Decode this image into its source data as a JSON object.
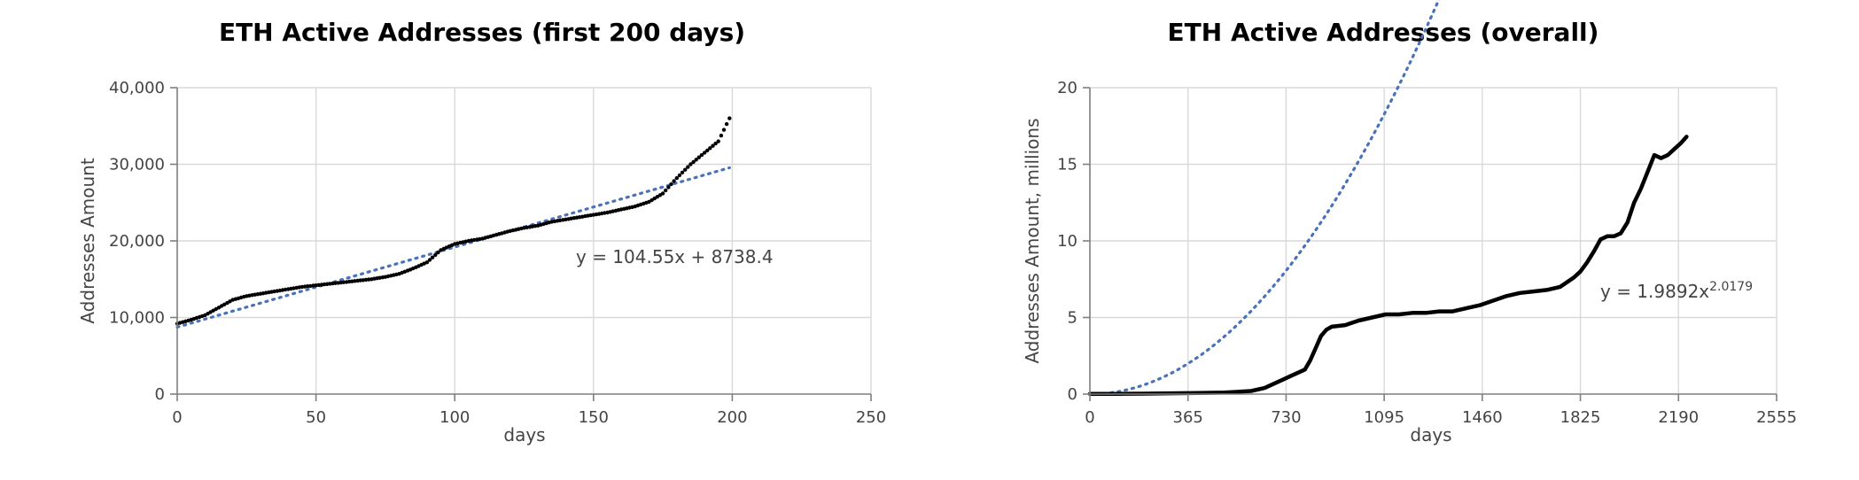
{
  "chart_data": [
    {
      "type": "scatter",
      "title": "ETH Active Addresses (first 200 days)",
      "xlabel": "days",
      "ylabel": "Addresses Amount",
      "xlim": [
        0,
        250
      ],
      "ylim": [
        0,
        40000
      ],
      "xticks": [
        0,
        50,
        100,
        150,
        200,
        250
      ],
      "yticks": [
        0,
        10000,
        20000,
        30000,
        40000
      ],
      "ytick_labels": [
        "0",
        "10,000",
        "20,000",
        "30,000",
        "40,000"
      ],
      "grid": true,
      "series": [
        {
          "color": "#000000",
          "x": [
            0,
            5,
            10,
            15,
            20,
            25,
            30,
            35,
            40,
            45,
            50,
            55,
            60,
            65,
            70,
            75,
            80,
            85,
            90,
            95,
            100,
            105,
            110,
            115,
            120,
            125,
            130,
            135,
            140,
            145,
            150,
            155,
            160,
            165,
            170,
            175,
            180,
            185,
            190,
            195,
            199
          ],
          "y": [
            9200,
            9700,
            10300,
            11300,
            12300,
            12800,
            13100,
            13400,
            13700,
            14000,
            14200,
            14400,
            14600,
            14800,
            15000,
            15300,
            15700,
            16400,
            17200,
            18800,
            19600,
            20000,
            20300,
            20800,
            21300,
            21700,
            22000,
            22500,
            22800,
            23100,
            23400,
            23700,
            24100,
            24500,
            25100,
            26200,
            28200,
            30000,
            31500,
            33000,
            36000
          ]
        }
      ],
      "trendline": {
        "kind": "linear",
        "slope": 104.55,
        "intercept": 8738.4,
        "x_range": [
          0,
          199
        ],
        "color": "#4a72b8",
        "label_main": "y = 104.55x + 8738.4",
        "label_exp": ""
      }
    },
    {
      "type": "line",
      "title": "ETH Active Addresses (overall)",
      "xlabel": "days",
      "ylabel": "Addresses Amount, millions",
      "xlim": [
        0,
        2555
      ],
      "ylim": [
        0,
        20
      ],
      "xticks": [
        0,
        365,
        730,
        1095,
        1460,
        1825,
        2190,
        2555
      ],
      "yticks": [
        0,
        5,
        10,
        15,
        20
      ],
      "ytick_labels": [
        "0",
        "5",
        "10",
        "15",
        "20"
      ],
      "grid": true,
      "series": [
        {
          "color": "#000000",
          "x": [
            0,
            100,
            200,
            300,
            400,
            500,
            600,
            650,
            700,
            750,
            800,
            820,
            840,
            860,
            880,
            900,
            950,
            1000,
            1050,
            1100,
            1150,
            1200,
            1250,
            1300,
            1350,
            1400,
            1450,
            1500,
            1550,
            1600,
            1650,
            1700,
            1750,
            1800,
            1825,
            1850,
            1875,
            1900,
            1925,
            1950,
            1975,
            2000,
            2025,
            2050,
            2075,
            2100,
            2125,
            2150,
            2175,
            2200,
            2220
          ],
          "y": [
            0.01,
            0.02,
            0.03,
            0.05,
            0.07,
            0.1,
            0.2,
            0.4,
            0.8,
            1.2,
            1.6,
            2.2,
            3.0,
            3.8,
            4.2,
            4.4,
            4.5,
            4.8,
            5.0,
            5.2,
            5.2,
            5.3,
            5.3,
            5.4,
            5.4,
            5.6,
            5.8,
            6.1,
            6.4,
            6.6,
            6.7,
            6.8,
            7.0,
            7.6,
            8.0,
            8.6,
            9.3,
            10.1,
            10.3,
            10.3,
            10.5,
            11.2,
            12.5,
            13.4,
            14.5,
            15.6,
            15.4,
            15.6,
            16.0,
            16.4,
            16.8
          ]
        }
      ],
      "trendline": {
        "kind": "power",
        "coef": 1.9892,
        "exponent": 2.0179,
        "x_unit": 365,
        "x_range": [
          0,
          2190
        ],
        "color": "#4a72b8",
        "label_main": "y = 1.9892x",
        "label_exp": "2.0179"
      }
    }
  ]
}
